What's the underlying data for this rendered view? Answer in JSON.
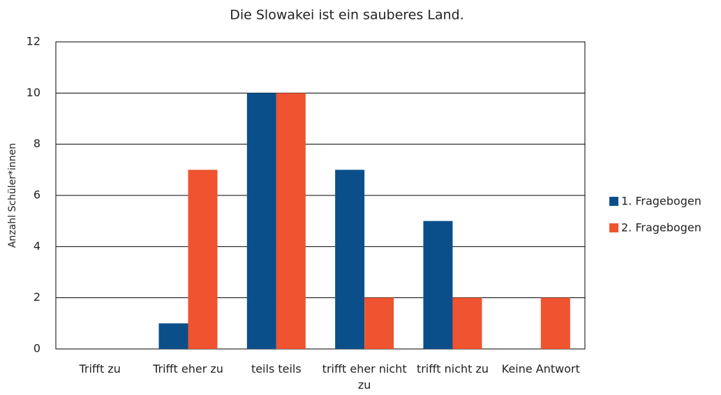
{
  "chart_data": {
    "type": "bar",
    "title": "Die Slowakei ist ein sauberes Land.",
    "y_label": "Anzahl Schüler*innen",
    "categories": [
      "Trifft zu",
      "Trifft eher zu",
      "teils teils",
      "trifft eher nicht zu",
      "trifft nicht zu",
      "Keine Antwort"
    ],
    "series": [
      {
        "name": "1. Fragebogen",
        "color": "#0b4f8a",
        "values": [
          0,
          1,
          10,
          7,
          5,
          0
        ]
      },
      {
        "name": "2. Fragebogen",
        "color": "#ef5330",
        "values": [
          0,
          7,
          10,
          2,
          2,
          2
        ]
      }
    ],
    "ylim": [
      0,
      12
    ],
    "yticks": [
      0,
      2,
      4,
      6,
      8,
      10,
      12
    ],
    "grid": true,
    "legend": "right"
  }
}
